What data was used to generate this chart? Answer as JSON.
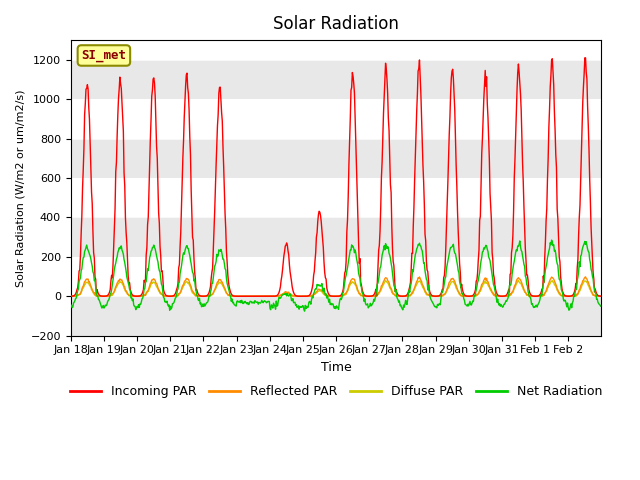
{
  "title": "Solar Radiation",
  "ylabel": "Solar Radiation (W/m2 or um/m2/s)",
  "xlabel": "Time",
  "ylim": [
    -200,
    1300
  ],
  "yticks": [
    -200,
    0,
    200,
    400,
    600,
    800,
    1000,
    1200
  ],
  "station_label": "SI_met",
  "x_tick_labels": [
    "Jan 18",
    "Jan 19",
    "Jan 20",
    "Jan 21",
    "Jan 22",
    "Jan 23",
    "Jan 24",
    "Jan 25",
    "Jan 26",
    "Jan 27",
    "Jan 28",
    "Jan 29",
    "Jan 30",
    "Jan 31",
    "Feb 1",
    "Feb 2"
  ],
  "colors": {
    "incoming": "#FF0000",
    "reflected": "#FF8C00",
    "diffuse": "#CCCC00",
    "net": "#00CC00"
  },
  "legend_labels": [
    "Incoming PAR",
    "Reflected PAR",
    "Diffuse PAR",
    "Net Radiation"
  ],
  "band_color": "#E8E8E8"
}
